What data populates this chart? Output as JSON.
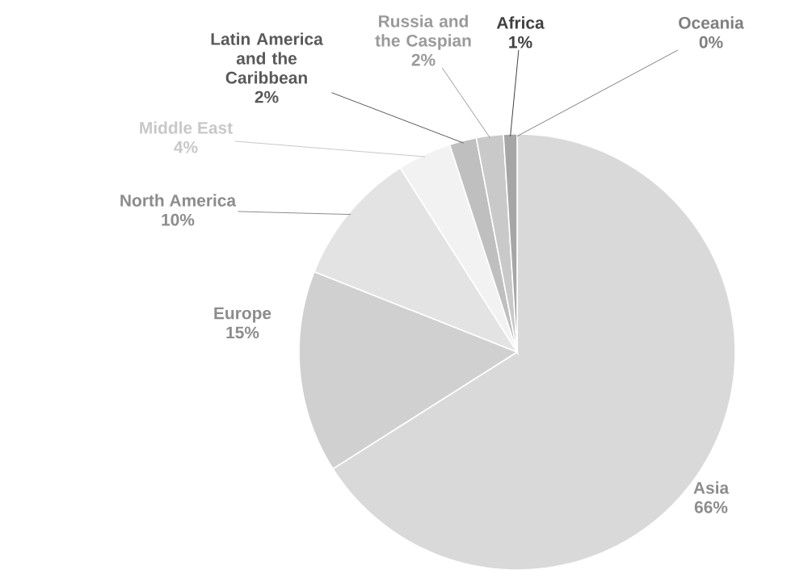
{
  "chart_data": {
    "type": "pie",
    "categories": [
      "Asia",
      "Europe",
      "North America",
      "Middle East",
      "Latin America and the Caribbean",
      "Russia and the Caspian",
      "Africa",
      "Oceania"
    ],
    "values": [
      66,
      15,
      10,
      4,
      2,
      2,
      1,
      0
    ],
    "value_labels": [
      "66%",
      "15%",
      "10%",
      "4%",
      "2%",
      "2%",
      "1%",
      "0%"
    ],
    "colors": [
      "#d9d9d9",
      "#d0d0d0",
      "#e3e3e3",
      "#f2f2f2",
      "#bfbfbf",
      "#c9c9c9",
      "#a6a6a6",
      "#808080"
    ]
  }
}
